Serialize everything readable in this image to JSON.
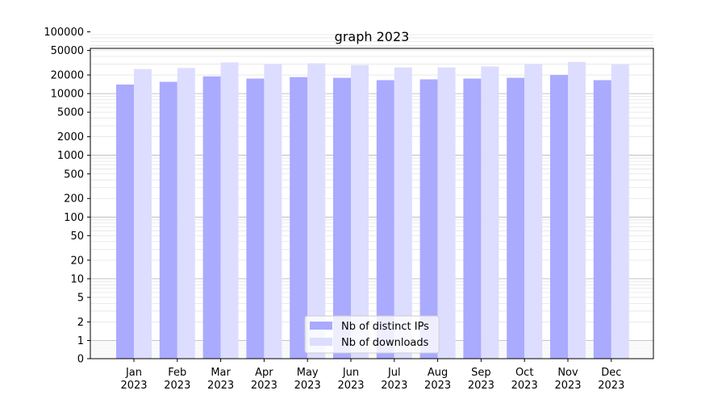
{
  "chart_data": {
    "type": "bar",
    "title": "graph 2023",
    "xlabel": "",
    "ylabel": "",
    "yscale": "symlog",
    "ylim": [
      0,
      100000
    ],
    "yticks": [
      0,
      1,
      2,
      5,
      10,
      20,
      50,
      100,
      200,
      500,
      1000,
      2000,
      5000,
      10000,
      20000,
      50000,
      100000
    ],
    "ytick_labels": [
      "0",
      "1",
      "2",
      "5",
      "10",
      "20",
      "50",
      "100",
      "200",
      "500",
      "1000",
      "2000",
      "5000",
      "10000",
      "20000",
      "50000",
      "100000"
    ],
    "grid": true,
    "legend_position": "lower center",
    "categories": [
      [
        "Jan",
        "2023"
      ],
      [
        "Feb",
        "2023"
      ],
      [
        "Mar",
        "2023"
      ],
      [
        "Apr",
        "2023"
      ],
      [
        "May",
        "2023"
      ],
      [
        "Jun",
        "2023"
      ],
      [
        "Jul",
        "2023"
      ],
      [
        "Aug",
        "2023"
      ],
      [
        "Sep",
        "2023"
      ],
      [
        "Oct",
        "2023"
      ],
      [
        "Nov",
        "2023"
      ],
      [
        "Dec",
        "2023"
      ]
    ],
    "series": [
      {
        "name": "Nb of distinct IPs",
        "color": "#aaaaff",
        "values": [
          14000,
          15500,
          19000,
          17500,
          18500,
          18000,
          16500,
          17000,
          17500,
          18000,
          20000,
          16500
        ]
      },
      {
        "name": "Nb of downloads",
        "color": "#ddddff",
        "values": [
          25000,
          26000,
          32000,
          30000,
          31000,
          29000,
          26500,
          26500,
          27500,
          30000,
          32500,
          29500
        ]
      }
    ]
  }
}
